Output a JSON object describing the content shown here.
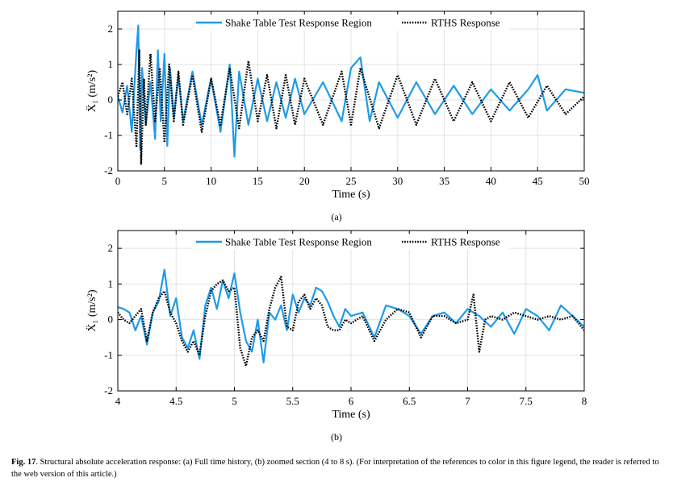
{
  "chart_data": [
    {
      "type": "line",
      "panel_label": "(a)",
      "xlabel": "Time (s)",
      "ylabel": "Ẍ₁ (m/s²)",
      "xlim": [
        0,
        50
      ],
      "ylim": [
        -2,
        2.5
      ],
      "xticks": [
        "0",
        "5",
        "10",
        "15",
        "20",
        "25",
        "30",
        "35",
        "40",
        "45",
        "50"
      ],
      "yticks": [
        "2",
        "1",
        "0",
        "-1",
        "-2"
      ],
      "grid": true,
      "legend_position": "top",
      "series": [
        {
          "name": "Shake Table Test Response Region",
          "color": "#1e9be8",
          "style": "solid",
          "x": [
            0,
            0.5,
            1,
            1.5,
            2,
            2.2,
            2.4,
            2.6,
            3,
            3.5,
            4,
            4.3,
            4.6,
            5,
            5.3,
            5.6,
            6,
            6.5,
            7,
            8,
            9,
            10,
            11,
            12,
            12.5,
            13,
            14,
            15,
            16,
            17,
            18,
            19,
            20,
            22,
            24,
            25,
            26,
            27,
            28,
            30,
            32,
            34,
            36,
            38,
            40,
            42,
            44,
            45,
            46,
            48,
            50
          ],
          "y": [
            0.1,
            -0.35,
            0.4,
            -0.9,
            1.4,
            2.1,
            -1.4,
            0.9,
            -0.7,
            0.5,
            -1.1,
            1.4,
            -0.6,
            1.3,
            -1.3,
            0.9,
            -0.5,
            0.7,
            -0.6,
            0.8,
            -0.7,
            0.6,
            -0.9,
            1.0,
            -1.6,
            0.8,
            -0.7,
            0.6,
            -0.6,
            0.5,
            -0.5,
            0.6,
            -0.4,
            0.5,
            -0.6,
            0.9,
            1.2,
            -0.6,
            0.5,
            -0.5,
            0.5,
            -0.4,
            0.4,
            -0.4,
            0.3,
            -0.3,
            0.3,
            0.7,
            -0.3,
            0.3,
            0.2
          ]
        },
        {
          "name": "RTHS Response",
          "color": "#000000",
          "style": "dotted",
          "x": [
            0,
            0.5,
            1,
            1.5,
            2,
            2.3,
            2.5,
            2.8,
            3,
            3.5,
            4,
            4.5,
            5,
            5.5,
            6,
            6.5,
            7,
            8,
            9,
            10,
            11,
            12,
            13,
            14,
            15,
            16,
            17,
            18,
            19,
            20,
            22,
            24,
            25,
            26,
            28,
            30,
            32,
            34,
            36,
            38,
            40,
            42,
            44,
            46,
            48,
            50
          ],
          "y": [
            0.1,
            0.5,
            -0.4,
            0.6,
            -1.3,
            1.4,
            -1.8,
            0.6,
            -0.7,
            1.3,
            -0.6,
            0.9,
            -1.2,
            1.0,
            -0.6,
            0.8,
            -0.7,
            0.7,
            -0.9,
            0.6,
            -0.7,
            0.9,
            -0.8,
            1.1,
            -0.6,
            0.7,
            -0.8,
            0.7,
            -0.7,
            0.6,
            -0.7,
            0.8,
            -0.7,
            0.9,
            -0.8,
            0.7,
            -0.7,
            0.6,
            -0.6,
            0.5,
            -0.6,
            0.5,
            -0.5,
            0.4,
            -0.4,
            0.1
          ]
        }
      ]
    },
    {
      "type": "line",
      "panel_label": "(b)",
      "xlabel": "Time (s)",
      "ylabel": "Ẍ₁ (m/s²)",
      "xlim": [
        4,
        8
      ],
      "ylim": [
        -2,
        2.5
      ],
      "xticks": [
        "4",
        "4.5",
        "5",
        "5.5",
        "6",
        "6.5",
        "7",
        "7.5",
        "8"
      ],
      "yticks": [
        "2",
        "1",
        "0",
        "-1",
        "-2"
      ],
      "grid": true,
      "legend_position": "top",
      "series": [
        {
          "name": "Shake Table Test Response Region",
          "color": "#1e9be8",
          "style": "solid",
          "x": [
            4.0,
            4.05,
            4.1,
            4.15,
            4.2,
            4.25,
            4.3,
            4.35,
            4.4,
            4.45,
            4.5,
            4.55,
            4.6,
            4.65,
            4.7,
            4.75,
            4.8,
            4.85,
            4.9,
            4.95,
            5.0,
            5.05,
            5.1,
            5.15,
            5.2,
            5.25,
            5.3,
            5.35,
            5.4,
            5.45,
            5.5,
            5.55,
            5.6,
            5.65,
            5.7,
            5.75,
            5.8,
            5.85,
            5.9,
            5.95,
            6.0,
            6.1,
            6.2,
            6.3,
            6.4,
            6.5,
            6.6,
            6.7,
            6.8,
            6.9,
            7.0,
            7.1,
            7.2,
            7.3,
            7.4,
            7.5,
            7.6,
            7.7,
            7.8,
            7.9,
            8.0
          ],
          "y": [
            0.35,
            0.3,
            0.2,
            -0.3,
            0.1,
            -0.7,
            0.2,
            0.5,
            1.4,
            0.1,
            0.6,
            -0.5,
            -0.8,
            -0.3,
            -1.1,
            0.4,
            0.9,
            0.3,
            1.1,
            0.6,
            1.3,
            0.2,
            -0.6,
            -0.9,
            0.0,
            -1.2,
            0.2,
            0.0,
            0.4,
            -0.3,
            0.7,
            0.2,
            0.6,
            0.4,
            0.9,
            0.8,
            0.5,
            0.1,
            -0.2,
            0.3,
            0.1,
            0.2,
            -0.5,
            0.4,
            0.3,
            0.1,
            -0.4,
            0.1,
            0.2,
            -0.1,
            0.3,
            0.1,
            -0.2,
            0.2,
            -0.4,
            0.3,
            0.1,
            -0.3,
            0.4,
            0.1,
            -0.2
          ]
        },
        {
          "name": "RTHS Response",
          "color": "#000000",
          "style": "dotted",
          "x": [
            4.0,
            4.05,
            4.1,
            4.15,
            4.2,
            4.25,
            4.3,
            4.35,
            4.4,
            4.45,
            4.5,
            4.55,
            4.6,
            4.65,
            4.7,
            4.75,
            4.8,
            4.85,
            4.9,
            4.95,
            5.0,
            5.05,
            5.1,
            5.15,
            5.2,
            5.25,
            5.3,
            5.35,
            5.4,
            5.45,
            5.5,
            5.55,
            5.6,
            5.65,
            5.7,
            5.75,
            5.8,
            5.85,
            5.9,
            5.95,
            6.0,
            6.1,
            6.2,
            6.3,
            6.4,
            6.5,
            6.6,
            6.7,
            6.8,
            6.9,
            7.0,
            7.05,
            7.1,
            7.15,
            7.2,
            7.3,
            7.4,
            7.5,
            7.6,
            7.7,
            7.8,
            7.9,
            8.0
          ],
          "y": [
            0.2,
            0.0,
            -0.1,
            0.1,
            0.3,
            -0.6,
            0.2,
            0.6,
            0.8,
            0.2,
            -0.1,
            -0.6,
            -0.9,
            -0.6,
            -1.0,
            0.1,
            0.8,
            1.0,
            1.1,
            0.8,
            0.9,
            -0.8,
            -1.3,
            -0.5,
            -0.3,
            -0.6,
            0.3,
            0.9,
            1.2,
            -0.2,
            -0.3,
            0.5,
            0.7,
            0.3,
            0.6,
            0.4,
            -0.2,
            -0.3,
            -0.3,
            0.0,
            -0.1,
            0.1,
            -0.6,
            0.0,
            0.3,
            0.2,
            -0.5,
            0.1,
            0.1,
            -0.1,
            0.0,
            0.7,
            -0.9,
            0.0,
            0.1,
            0.0,
            0.2,
            0.1,
            0.0,
            0.1,
            0.0,
            0.1,
            -0.3
          ]
        }
      ]
    }
  ],
  "caption": {
    "label": "Fig. 17",
    "text": ". Structural absolute acceleration response: (a) Full time history, (b) zoomed section (4 to 8 s). (For interpretation of the references to color in this figure legend, the reader is referred to the web version of this article.)"
  }
}
